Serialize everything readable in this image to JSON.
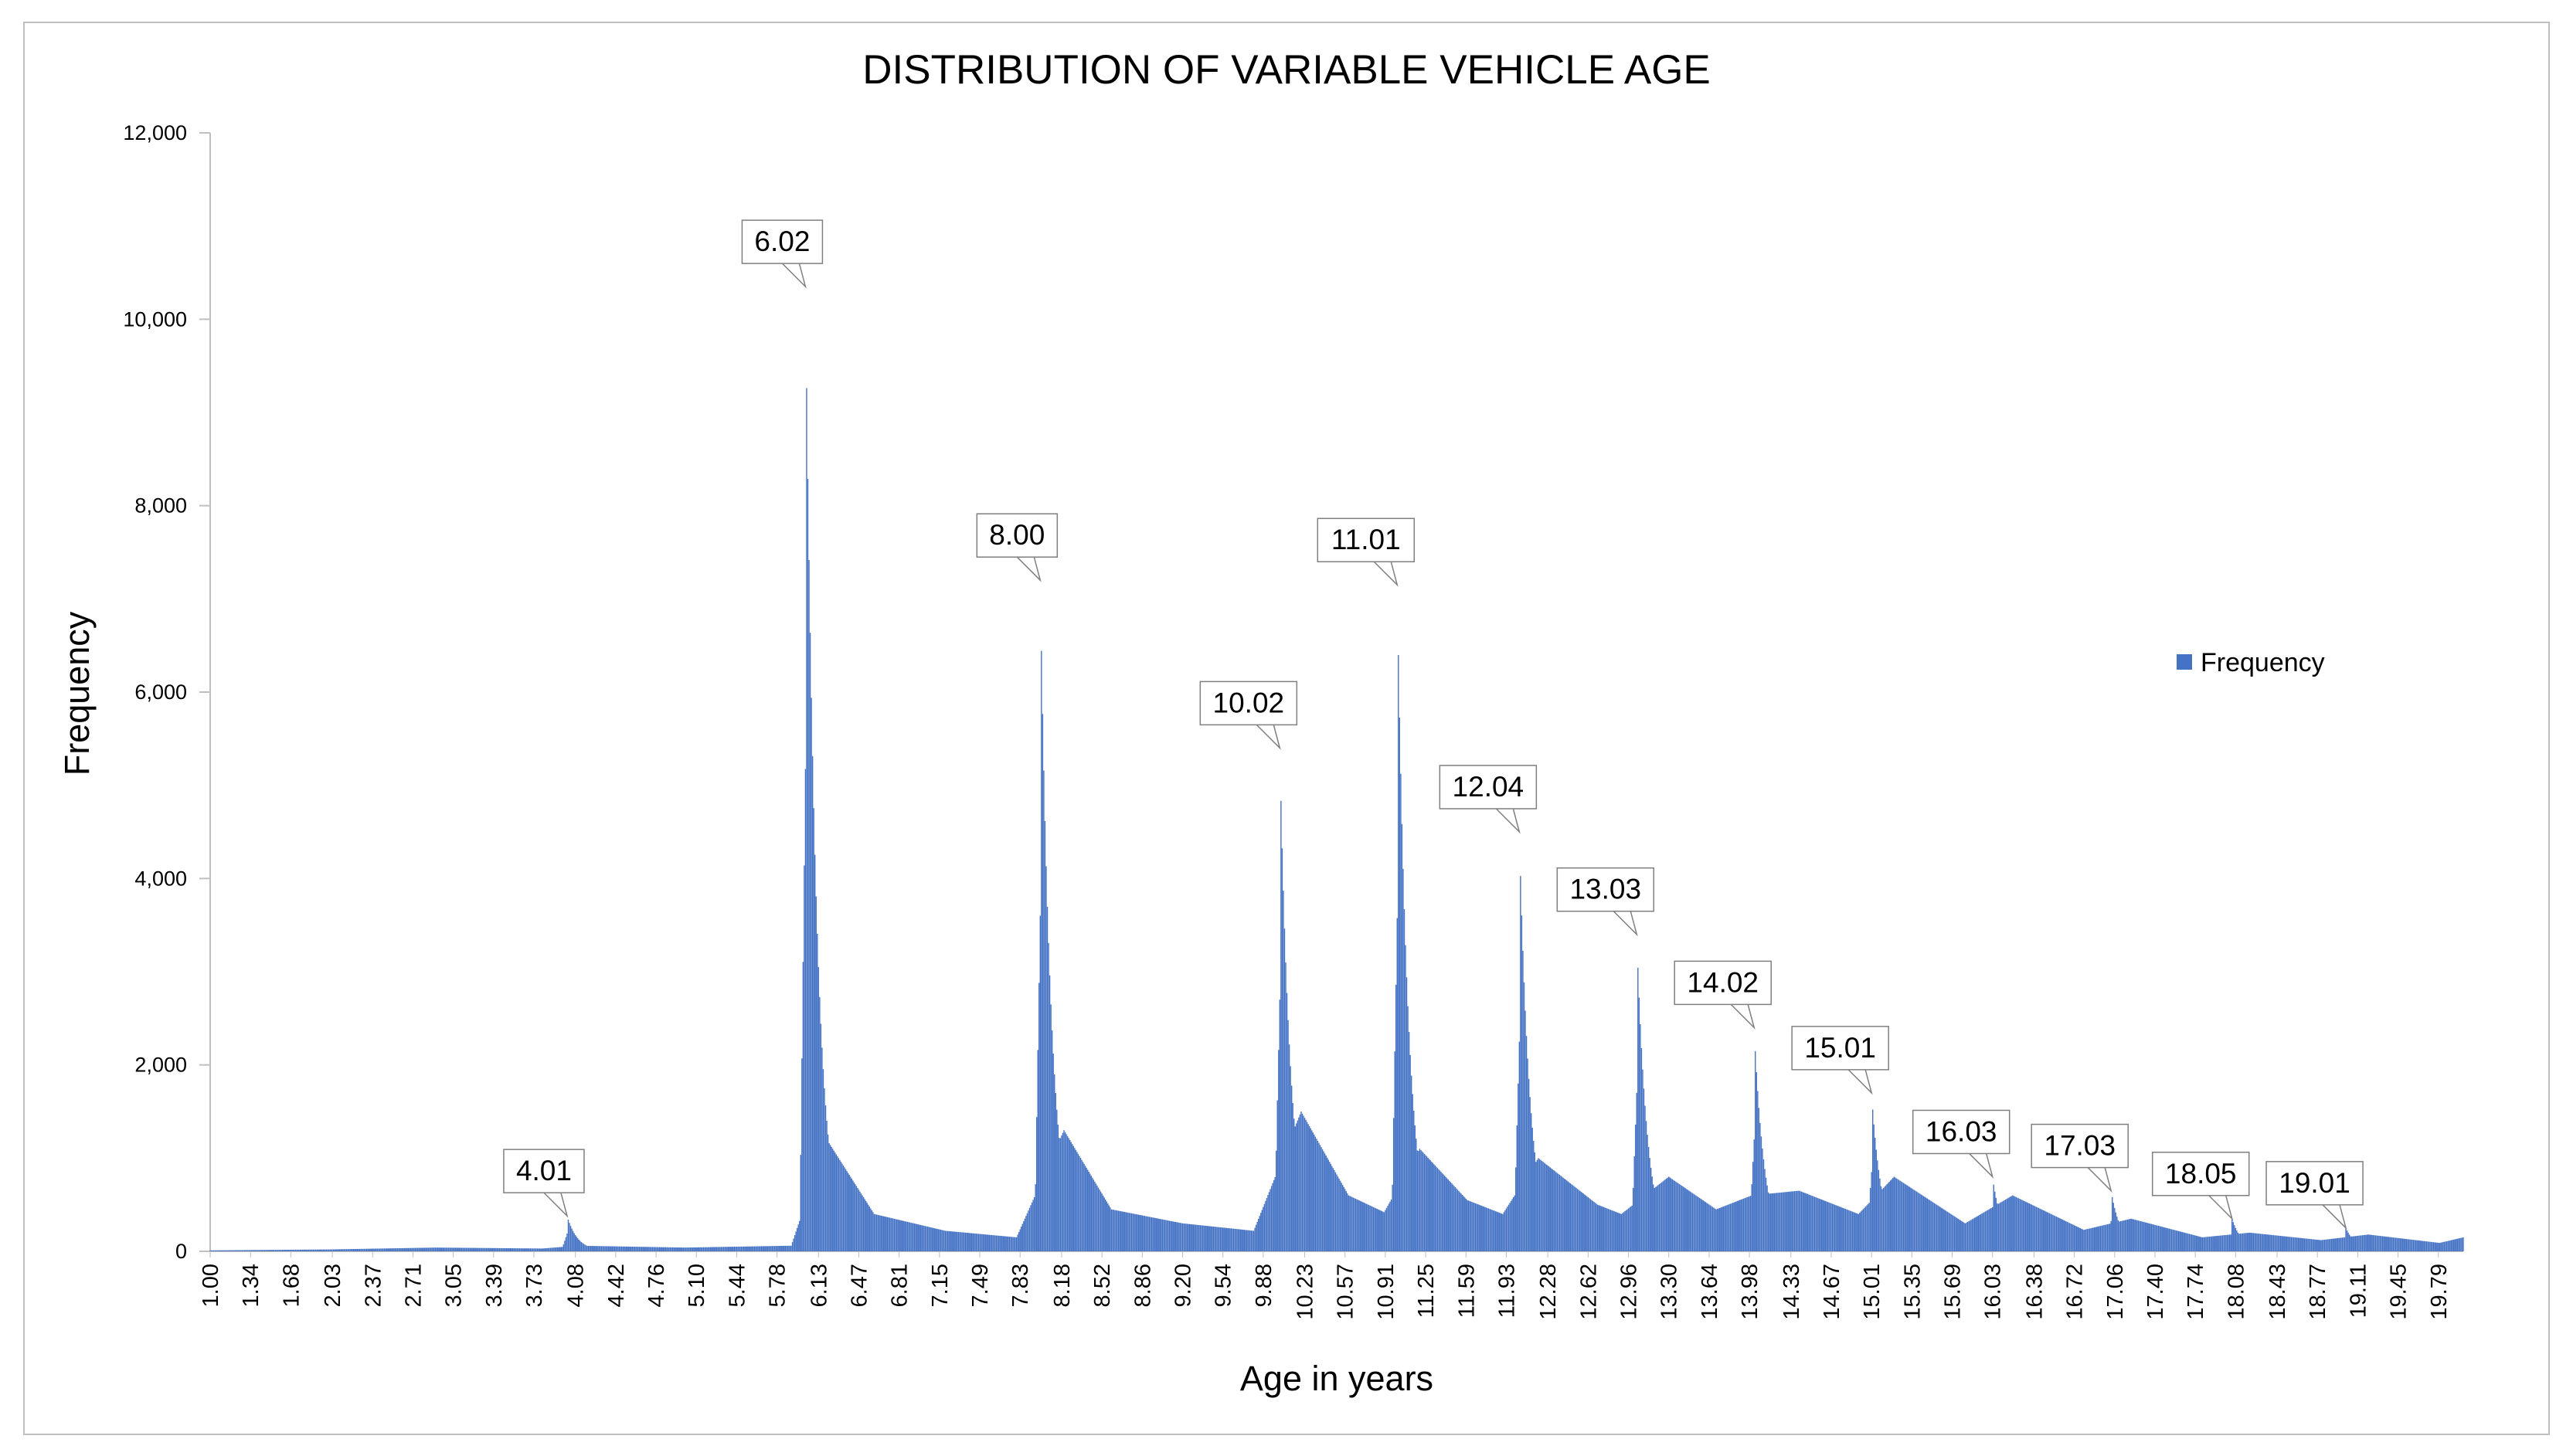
{
  "chart_data": {
    "type": "bar",
    "title": "DISTRIBUTION OF VARIABLE VEHICLE AGE",
    "xlabel": "Age in years",
    "ylabel": "Frequency",
    "ylim": [
      0,
      12000
    ],
    "yticks": [
      0,
      2000,
      4000,
      6000,
      8000,
      10000,
      12000
    ],
    "ytick_labels": [
      "0",
      "2,000",
      "4,000",
      "6,000",
      "8,000",
      "10,000",
      "12,000"
    ],
    "x_tick_labels": [
      "1.00",
      "1.34",
      "1.68",
      "2.03",
      "2.37",
      "2.71",
      "3.05",
      "3.39",
      "3.73",
      "4.08",
      "4.42",
      "4.76",
      "5.10",
      "5.44",
      "5.78",
      "6.13",
      "6.47",
      "6.81",
      "7.15",
      "7.49",
      "7.83",
      "8.18",
      "8.52",
      "8.86",
      "9.20",
      "9.54",
      "9.88",
      "10.23",
      "10.57",
      "10.91",
      "11.25",
      "11.59",
      "11.93",
      "12.28",
      "12.62",
      "12.96",
      "13.30",
      "13.64",
      "13.98",
      "14.33",
      "14.67",
      "15.01",
      "15.35",
      "15.69",
      "16.03",
      "16.38",
      "16.72",
      "17.06",
      "17.40",
      "17.74",
      "18.08",
      "18.43",
      "18.77",
      "19.11",
      "19.45",
      "19.79"
    ],
    "grid": false,
    "legend_position": "right",
    "series": [
      {
        "name": "Frequency",
        "color": "#4472c4",
        "peaks": [
          {
            "label": "4.01",
            "x": 4.01,
            "value": 380
          },
          {
            "label": "6.02",
            "x": 6.02,
            "value": 10350
          },
          {
            "label": "8.00",
            "x": 8.0,
            "value": 7200
          },
          {
            "label": "10.02",
            "x": 10.02,
            "value": 5400
          },
          {
            "label": "11.01",
            "x": 11.01,
            "value": 7150
          },
          {
            "label": "12.04",
            "x": 12.04,
            "value": 4500
          },
          {
            "label": "13.03",
            "x": 13.03,
            "value": 3400
          },
          {
            "label": "14.02",
            "x": 14.02,
            "value": 2400
          },
          {
            "label": "15.01",
            "x": 15.01,
            "value": 1700
          },
          {
            "label": "16.03",
            "x": 16.03,
            "value": 800
          },
          {
            "label": "17.03",
            "x": 17.03,
            "value": 650
          },
          {
            "label": "18.05",
            "x": 18.05,
            "value": 350
          },
          {
            "label": "19.01",
            "x": 19.01,
            "value": 250
          }
        ],
        "background": [
          {
            "x": 1.0,
            "value": 10
          },
          {
            "x": 2.0,
            "value": 20
          },
          {
            "x": 2.9,
            "value": 40
          },
          {
            "x": 3.8,
            "value": 30
          },
          {
            "x": 4.1,
            "value": 60
          },
          {
            "x": 5.0,
            "value": 40
          },
          {
            "x": 5.9,
            "value": 60
          },
          {
            "x": 6.2,
            "value": 1200
          },
          {
            "x": 6.6,
            "value": 400
          },
          {
            "x": 7.2,
            "value": 220
          },
          {
            "x": 7.8,
            "value": 150
          },
          {
            "x": 8.2,
            "value": 1300
          },
          {
            "x": 8.6,
            "value": 450
          },
          {
            "x": 9.2,
            "value": 300
          },
          {
            "x": 9.8,
            "value": 220
          },
          {
            "x": 10.2,
            "value": 1500
          },
          {
            "x": 10.6,
            "value": 600
          },
          {
            "x": 10.9,
            "value": 420
          },
          {
            "x": 11.2,
            "value": 1100
          },
          {
            "x": 11.6,
            "value": 550
          },
          {
            "x": 11.9,
            "value": 400
          },
          {
            "x": 12.2,
            "value": 1000
          },
          {
            "x": 12.7,
            "value": 500
          },
          {
            "x": 12.9,
            "value": 400
          },
          {
            "x": 13.3,
            "value": 800
          },
          {
            "x": 13.7,
            "value": 450
          },
          {
            "x": 14.0,
            "value": 600
          },
          {
            "x": 14.4,
            "value": 650
          },
          {
            "x": 14.9,
            "value": 400
          },
          {
            "x": 15.2,
            "value": 800
          },
          {
            "x": 15.8,
            "value": 300
          },
          {
            "x": 16.2,
            "value": 600
          },
          {
            "x": 16.8,
            "value": 230
          },
          {
            "x": 17.2,
            "value": 350
          },
          {
            "x": 17.8,
            "value": 150
          },
          {
            "x": 18.2,
            "value": 200
          },
          {
            "x": 18.8,
            "value": 120
          },
          {
            "x": 19.2,
            "value": 180
          },
          {
            "x": 19.8,
            "value": 90
          },
          {
            "x": 20.0,
            "value": 150
          }
        ]
      }
    ]
  },
  "legend": {
    "label": "Frequency",
    "color": "#4472c4"
  }
}
